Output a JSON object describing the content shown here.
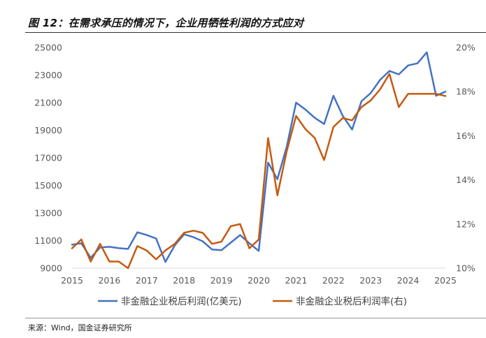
{
  "title": "图 12：在需求承压的情况下，企业用牺牲利润的方式应对",
  "source": "来源：Wind，国金证券研究所",
  "colors": {
    "series1": "#4472C4",
    "series2": "#C55A11"
  },
  "chart_data": {
    "type": "line",
    "title": "图 12：在需求承压的情况下，企业用牺牲利润的方式应对",
    "x_ticks": [
      "2015",
      "2016",
      "2017",
      "2018",
      "2019",
      "2020",
      "2021",
      "2022",
      "2023",
      "2024",
      "2025"
    ],
    "x_range": [
      2015.0,
      2025.0
    ],
    "y_left": {
      "ticks": [
        "9000",
        "11000",
        "13000",
        "15000",
        "17000",
        "19000",
        "21000",
        "23000",
        "25000"
      ],
      "range": [
        9000,
        25000
      ]
    },
    "y_right": {
      "ticks": [
        "10%",
        "12%",
        "14%",
        "16%",
        "18%",
        "20%"
      ],
      "range": [
        10,
        20
      ]
    },
    "legend_position": "bottom",
    "series": [
      {
        "name": "非金融企业税后利润(亿美元)",
        "axis": "left",
        "x": [
          2015.0,
          2015.25,
          2015.5,
          2015.75,
          2016.0,
          2016.25,
          2016.5,
          2016.75,
          2017.0,
          2017.25,
          2017.5,
          2017.75,
          2018.0,
          2018.25,
          2018.5,
          2018.75,
          2019.0,
          2019.25,
          2019.5,
          2019.75,
          2020.0,
          2020.25,
          2020.5,
          2020.75,
          2021.0,
          2021.25,
          2021.5,
          2021.75,
          2022.0,
          2022.25,
          2022.5,
          2022.75,
          2023.0,
          2023.25,
          2023.5,
          2023.75,
          2024.0,
          2024.25,
          2024.5,
          2024.75,
          2025.0
        ],
        "values": [
          10700,
          10800,
          9750,
          10500,
          10550,
          10450,
          10400,
          11600,
          11400,
          11150,
          9450,
          10650,
          11450,
          11250,
          10950,
          10350,
          10300,
          10850,
          11400,
          10800,
          10250,
          16650,
          15450,
          17800,
          21000,
          20500,
          19900,
          19450,
          21500,
          20050,
          19050,
          21100,
          21700,
          22650,
          23300,
          23050,
          23700,
          23850,
          24650,
          21500,
          21800
        ]
      },
      {
        "name": "非金融企业税后利润率(右)",
        "axis": "right",
        "x": [
          2015.0,
          2015.25,
          2015.5,
          2015.75,
          2016.0,
          2016.25,
          2016.5,
          2016.75,
          2017.0,
          2017.25,
          2017.5,
          2017.75,
          2018.0,
          2018.25,
          2018.5,
          2018.75,
          2019.0,
          2019.25,
          2019.5,
          2019.75,
          2020.0,
          2020.25,
          2020.5,
          2020.75,
          2021.0,
          2021.25,
          2021.5,
          2021.75,
          2022.0,
          2022.25,
          2022.5,
          2022.75,
          2023.0,
          2023.25,
          2023.5,
          2023.75,
          2024.0,
          2024.25,
          2024.5,
          2024.75,
          2025.0
        ],
        "values": [
          10.9,
          11.3,
          10.3,
          11.1,
          10.3,
          10.3,
          10.0,
          11.0,
          10.8,
          10.4,
          10.8,
          11.1,
          11.6,
          11.7,
          11.6,
          11.1,
          11.2,
          11.9,
          12.0,
          10.9,
          11.3,
          15.9,
          13.3,
          15.3,
          16.9,
          16.3,
          15.9,
          14.9,
          16.4,
          16.8,
          16.7,
          17.3,
          17.6,
          18.1,
          18.8,
          17.3,
          17.9,
          17.9,
          17.9,
          17.9,
          17.8
        ]
      }
    ]
  }
}
